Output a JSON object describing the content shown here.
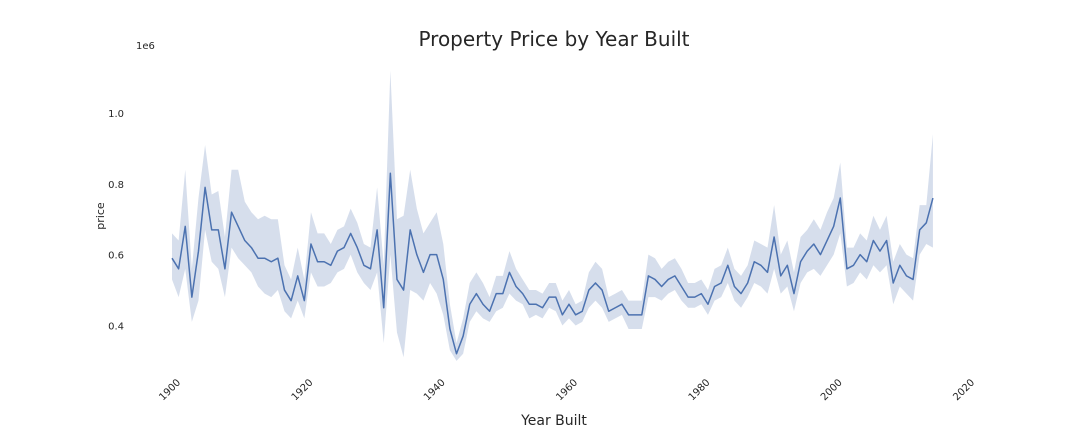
{
  "chart_data": {
    "type": "line",
    "title": "Property Price by Year Built",
    "xlabel": "Year Built",
    "ylabel": "price",
    "y_offset_label": "1e6",
    "xlim": [
      1900,
      2020
    ],
    "ylim": [
      0.26,
      1.15
    ],
    "y_scale_note": "values in millions (1e6)",
    "xticks": [
      "1900",
      "1920",
      "1940",
      "1960",
      "1980",
      "2000",
      "2020"
    ],
    "yticks": [
      "0.4",
      "0.6",
      "0.8",
      "1.0"
    ],
    "grid": false,
    "band": "95% confidence interval",
    "line_color": "#4c72b0",
    "band_color": "#c8d3e6",
    "series": [
      {
        "x": [
          1900,
          1901,
          1902,
          1903,
          1904,
          1905,
          1906,
          1907,
          1908,
          1909,
          1910,
          1911,
          1912,
          1913,
          1914,
          1915,
          1916,
          1917,
          1918,
          1919,
          1920,
          1921,
          1922,
          1923,
          1924,
          1925,
          1926,
          1927,
          1928,
          1929,
          1930,
          1931,
          1932,
          1933,
          1934,
          1935,
          1936,
          1937,
          1938,
          1939,
          1940,
          1941,
          1942,
          1943,
          1944,
          1945,
          1946,
          1947,
          1948,
          1949,
          1950,
          1951,
          1952,
          1953,
          1954,
          1955,
          1956,
          1957,
          1958,
          1959,
          1960,
          1961,
          1962,
          1963,
          1964,
          1965,
          1966,
          1967,
          1968,
          1969,
          1970,
          1971,
          1972,
          1973,
          1974,
          1975,
          1976,
          1977,
          1978,
          1979,
          1980,
          1981,
          1982,
          1983,
          1984,
          1985,
          1986,
          1987,
          1988,
          1989,
          1990,
          1991,
          1992,
          1993,
          1994,
          1995,
          1996,
          1997,
          1998,
          1999,
          2000,
          2001,
          2002,
          2003,
          2004,
          2005,
          2006,
          2007,
          2008,
          2009,
          2010,
          2011,
          2012,
          2013,
          2014,
          2015
        ],
        "y": [
          0.59,
          0.56,
          0.68,
          0.48,
          0.61,
          0.79,
          0.67,
          0.67,
          0.56,
          0.72,
          0.68,
          0.64,
          0.62,
          0.59,
          0.59,
          0.58,
          0.59,
          0.5,
          0.47,
          0.54,
          0.47,
          0.63,
          0.58,
          0.58,
          0.57,
          0.61,
          0.62,
          0.66,
          0.62,
          0.57,
          0.56,
          0.67,
          0.45,
          0.83,
          0.53,
          0.5,
          0.67,
          0.6,
          0.55,
          0.6,
          0.6,
          0.53,
          0.39,
          0.32,
          0.37,
          0.46,
          0.49,
          0.46,
          0.44,
          0.49,
          0.49,
          0.55,
          0.51,
          0.49,
          0.46,
          0.46,
          0.45,
          0.48,
          0.48,
          0.43,
          0.46,
          0.43,
          0.44,
          0.5,
          0.52,
          0.5,
          0.44,
          0.45,
          0.46,
          0.43,
          0.43,
          0.43,
          0.54,
          0.53,
          0.51,
          0.53,
          0.54,
          0.51,
          0.48,
          0.48,
          0.49,
          0.46,
          0.51,
          0.52,
          0.57,
          0.51,
          0.49,
          0.52,
          0.58,
          0.57,
          0.55,
          0.65,
          0.54,
          0.57,
          0.49,
          0.58,
          0.61,
          0.63,
          0.6,
          0.64,
          0.68,
          0.76,
          0.56,
          0.57,
          0.6,
          0.58,
          0.64,
          0.61,
          0.64,
          0.52,
          0.57,
          0.54,
          0.53,
          0.67,
          0.69,
          0.76
        ],
        "ci_low": [
          0.53,
          0.48,
          0.56,
          0.41,
          0.47,
          0.67,
          0.58,
          0.56,
          0.48,
          0.62,
          0.59,
          0.57,
          0.55,
          0.51,
          0.49,
          0.48,
          0.5,
          0.44,
          0.42,
          0.47,
          0.42,
          0.55,
          0.51,
          0.51,
          0.52,
          0.55,
          0.56,
          0.6,
          0.55,
          0.52,
          0.5,
          0.55,
          0.35,
          0.6,
          0.38,
          0.31,
          0.5,
          0.49,
          0.47,
          0.52,
          0.49,
          0.43,
          0.33,
          0.3,
          0.32,
          0.41,
          0.44,
          0.42,
          0.41,
          0.44,
          0.45,
          0.49,
          0.47,
          0.46,
          0.42,
          0.43,
          0.42,
          0.45,
          0.44,
          0.4,
          0.42,
          0.4,
          0.41,
          0.45,
          0.47,
          0.45,
          0.41,
          0.42,
          0.43,
          0.39,
          0.39,
          0.39,
          0.48,
          0.48,
          0.47,
          0.49,
          0.5,
          0.47,
          0.45,
          0.45,
          0.46,
          0.43,
          0.47,
          0.48,
          0.52,
          0.47,
          0.45,
          0.48,
          0.52,
          0.51,
          0.49,
          0.56,
          0.49,
          0.51,
          0.44,
          0.52,
          0.55,
          0.56,
          0.54,
          0.57,
          0.6,
          0.66,
          0.51,
          0.52,
          0.55,
          0.53,
          0.57,
          0.55,
          0.57,
          0.46,
          0.51,
          0.49,
          0.47,
          0.6,
          0.63,
          0.62
        ],
        "ci_high": [
          0.66,
          0.64,
          0.84,
          0.56,
          0.76,
          0.91,
          0.77,
          0.78,
          0.65,
          0.84,
          0.84,
          0.75,
          0.72,
          0.7,
          0.71,
          0.7,
          0.7,
          0.57,
          0.53,
          0.62,
          0.53,
          0.72,
          0.66,
          0.66,
          0.63,
          0.67,
          0.68,
          0.73,
          0.69,
          0.63,
          0.62,
          0.79,
          0.57,
          1.12,
          0.7,
          0.71,
          0.84,
          0.73,
          0.66,
          0.69,
          0.72,
          0.63,
          0.46,
          0.35,
          0.42,
          0.52,
          0.55,
          0.52,
          0.48,
          0.54,
          0.54,
          0.61,
          0.56,
          0.53,
          0.5,
          0.5,
          0.49,
          0.52,
          0.52,
          0.47,
          0.5,
          0.46,
          0.47,
          0.55,
          0.58,
          0.56,
          0.48,
          0.49,
          0.5,
          0.47,
          0.47,
          0.47,
          0.6,
          0.59,
          0.56,
          0.58,
          0.59,
          0.56,
          0.52,
          0.52,
          0.53,
          0.5,
          0.56,
          0.57,
          0.62,
          0.56,
          0.54,
          0.57,
          0.64,
          0.63,
          0.62,
          0.74,
          0.6,
          0.64,
          0.55,
          0.65,
          0.67,
          0.7,
          0.67,
          0.72,
          0.76,
          0.86,
          0.62,
          0.62,
          0.66,
          0.64,
          0.71,
          0.67,
          0.71,
          0.58,
          0.63,
          0.6,
          0.59,
          0.74,
          0.74,
          0.94
        ]
      }
    ]
  }
}
